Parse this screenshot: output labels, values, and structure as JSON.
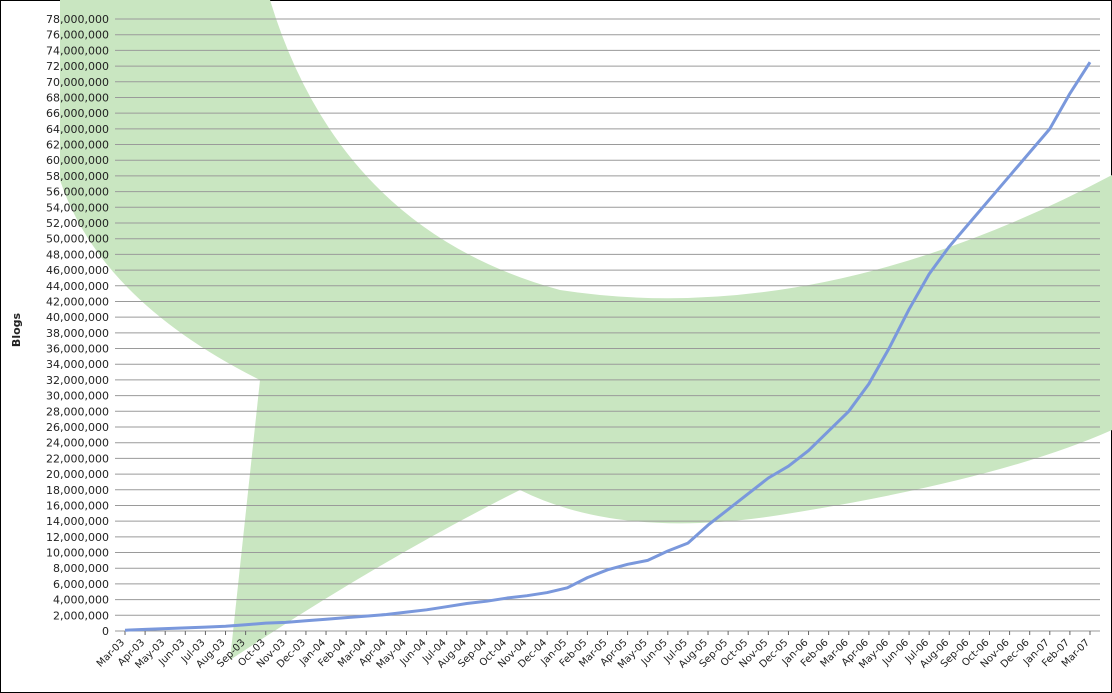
{
  "chart_data": {
    "type": "line",
    "ylabel": "Blogs",
    "categories": [
      "Mar-03",
      "Apr-03",
      "May-03",
      "Jun-03",
      "Jul-03",
      "Aug-03",
      "Sep-03",
      "Oct-03",
      "Nov-03",
      "Dec-03",
      "Jan-04",
      "Feb-04",
      "Mar-04",
      "Apr-04",
      "May-04",
      "Jun-04",
      "Jul-04",
      "Aug-04",
      "Sep-04",
      "Oct-04",
      "Nov-04",
      "Dec-04",
      "Jan-05",
      "Feb-05",
      "Mar-05",
      "Apr-05",
      "May-05",
      "Jun-05",
      "Jul-05",
      "Aug-05",
      "Sep-05",
      "Oct-05",
      "Nov-05",
      "Dec-05",
      "Jan-06",
      "Feb-06",
      "Mar-06",
      "Apr-06",
      "May-06",
      "Jun-06",
      "Jul-06",
      "Aug-06",
      "Sep-06",
      "Oct-06",
      "Nov-06",
      "Dec-06",
      "Jan-07",
      "Feb-07",
      "Mar-07"
    ],
    "values": [
      100000,
      200000,
      300000,
      400000,
      500000,
      600000,
      800000,
      1000000,
      1100000,
      1300000,
      1500000,
      1700000,
      1900000,
      2100000,
      2400000,
      2700000,
      3100000,
      3500000,
      3800000,
      4200000,
      4500000,
      4900000,
      5500000,
      6800000,
      7800000,
      8500000,
      9000000,
      10200000,
      11200000,
      13500000,
      15500000,
      17500000,
      19500000,
      21000000,
      23000000,
      25500000,
      28000000,
      31500000,
      36000000,
      41000000,
      45500000,
      49000000,
      52000000,
      55000000,
      58000000,
      61000000,
      64000000,
      68500000,
      72500000
    ],
    "color": "#7a98dc",
    "ylim": [
      0,
      78000000
    ],
    "yticks": [
      0,
      {
        "value": 2000000,
        "label": "2,000,000"
      },
      {
        "value": 4000000,
        "label": "4,000,000"
      },
      {
        "value": 6000000,
        "label": "6,000,000"
      },
      {
        "value": 8000000,
        "label": "8,000,000"
      },
      {
        "value": 10000000,
        "label": "10,000,000"
      },
      {
        "value": 12000000,
        "label": "12,000,000"
      },
      {
        "value": 14000000,
        "label": "14,000,000"
      },
      {
        "value": 16000000,
        "label": "16,000,000"
      },
      {
        "value": 18000000,
        "label": "18,000,000"
      },
      {
        "value": 20000000,
        "label": "20,000,000"
      },
      {
        "value": 22000000,
        "label": "22,000,000"
      },
      {
        "value": 24000000,
        "label": "24,000,000"
      },
      {
        "value": 26000000,
        "label": "26,000,000"
      },
      {
        "value": 28000000,
        "label": "28,000,000"
      },
      {
        "value": 30000000,
        "label": "30,000,000"
      },
      {
        "value": 32000000,
        "label": "32,000,000"
      },
      {
        "value": 34000000,
        "label": "34,000,000"
      },
      {
        "value": 36000000,
        "label": "36,000,000"
      },
      {
        "value": 38000000,
        "label": "38,000,000"
      },
      {
        "value": 40000000,
        "label": "40,000,000"
      },
      {
        "value": 42000000,
        "label": "42,000,000"
      },
      {
        "value": 44000000,
        "label": "44,000,000"
      },
      {
        "value": 46000000,
        "label": "46,000,000"
      },
      {
        "value": 48000000,
        "label": "48,000,000"
      },
      {
        "value": 50000000,
        "label": "50,000,000"
      },
      {
        "value": 52000000,
        "label": "52,000,000"
      },
      {
        "value": 54000000,
        "label": "54,000,000"
      },
      {
        "value": 56000000,
        "label": "56,000,000"
      },
      {
        "value": 58000000,
        "label": "58,000,000"
      },
      {
        "value": 60000000,
        "label": "60,000,000"
      },
      {
        "value": 62000000,
        "label": "62,000,000"
      },
      {
        "value": 64000000,
        "label": "64,000,000"
      },
      {
        "value": 66000000,
        "label": "66,000,000"
      },
      {
        "value": 68000000,
        "label": "68,000,000"
      },
      {
        "value": 70000000,
        "label": "70,000,000"
      },
      {
        "value": 72000000,
        "label": "72,000,000"
      },
      {
        "value": 74000000,
        "label": "74,000,000"
      },
      {
        "value": 76000000,
        "label": "76,000,000"
      },
      {
        "value": 78000000,
        "label": "78,000,000"
      }
    ],
    "grid": true
  }
}
